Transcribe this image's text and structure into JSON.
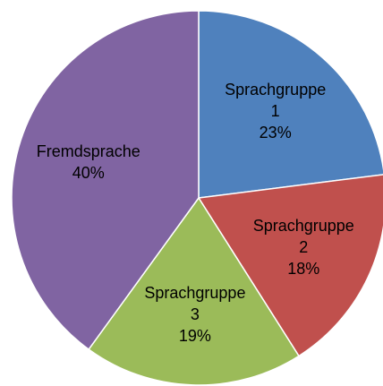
{
  "chart_data": {
    "type": "pie",
    "categories": [
      "Sprachgruppe 1",
      "Sprachgruppe 2",
      "Sprachgruppe 3",
      "Fremdsprache"
    ],
    "values": [
      23,
      18,
      19,
      40
    ],
    "value_labels": [
      "23%",
      "18%",
      "19%",
      "40%"
    ],
    "colors": [
      "#4f81bd",
      "#c0504d",
      "#9bbb59",
      "#8064a2"
    ]
  }
}
